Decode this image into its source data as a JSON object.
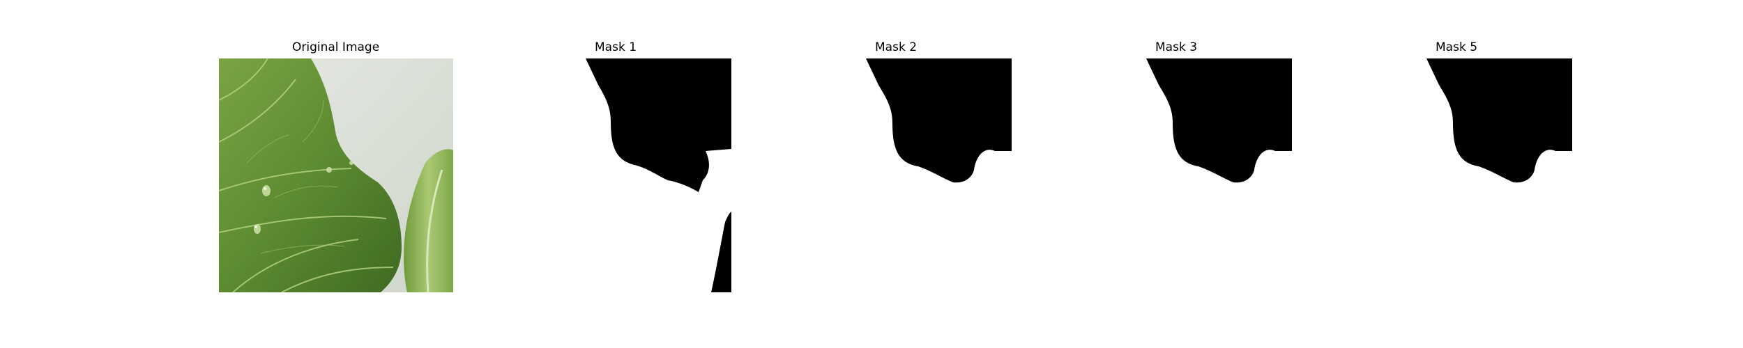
{
  "panels": [
    {
      "title": "Original Image",
      "kind": "photo",
      "subject": "green leafy vegetable"
    },
    {
      "title": "Mask 1",
      "kind": "mask"
    },
    {
      "title": "Mask 2",
      "kind": "mask"
    },
    {
      "title": "Mask 3",
      "kind": "mask"
    },
    {
      "title": "Mask 5",
      "kind": "mask"
    }
  ],
  "colors": {
    "background": "#ffffff",
    "mask_foreground": "#000000",
    "leaf_dark": "#4f7a2a",
    "leaf_light": "#8fb85a",
    "backdrop": "#dfe3dc"
  }
}
